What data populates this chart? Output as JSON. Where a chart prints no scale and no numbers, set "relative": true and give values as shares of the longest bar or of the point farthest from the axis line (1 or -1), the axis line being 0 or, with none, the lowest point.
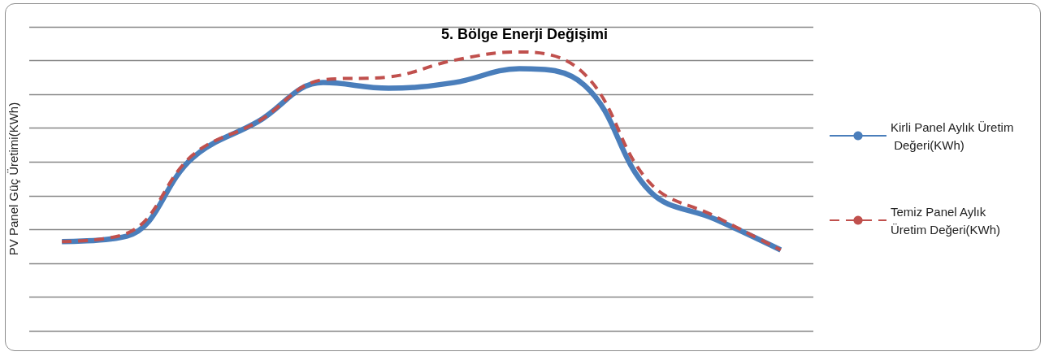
{
  "chart_data": {
    "type": "line",
    "title": "5. Bölge Enerji Değişimi",
    "ylabel": "PV Panel Güç Üretimi(KWh)",
    "relative": true,
    "grid": "y",
    "legend": "right",
    "marker": "none",
    "categories": [
      null,
      null,
      null,
      null,
      null,
      null,
      null,
      null,
      null,
      null,
      null,
      null
    ],
    "series": [
      {
        "name": "Kirli Panel Aylık Üretim Değeri(KWh)",
        "color": "#4a7ebb",
        "line_style": "solid",
        "values": [
          0.32,
          0.34,
          0.62,
          0.75,
          0.89,
          0.87,
          0.89,
          0.94,
          0.88,
          0.5,
          0.4,
          0.29
        ]
      },
      {
        "name": "Temiz Panel Aylık Üretim Değeri(KWh)",
        "color": "#c0504d",
        "line_style": "dashed",
        "values": [
          0.32,
          0.35,
          0.63,
          0.75,
          0.9,
          0.91,
          0.97,
          1,
          0.92,
          0.53,
          0.41,
          0.29
        ]
      }
    ]
  }
}
